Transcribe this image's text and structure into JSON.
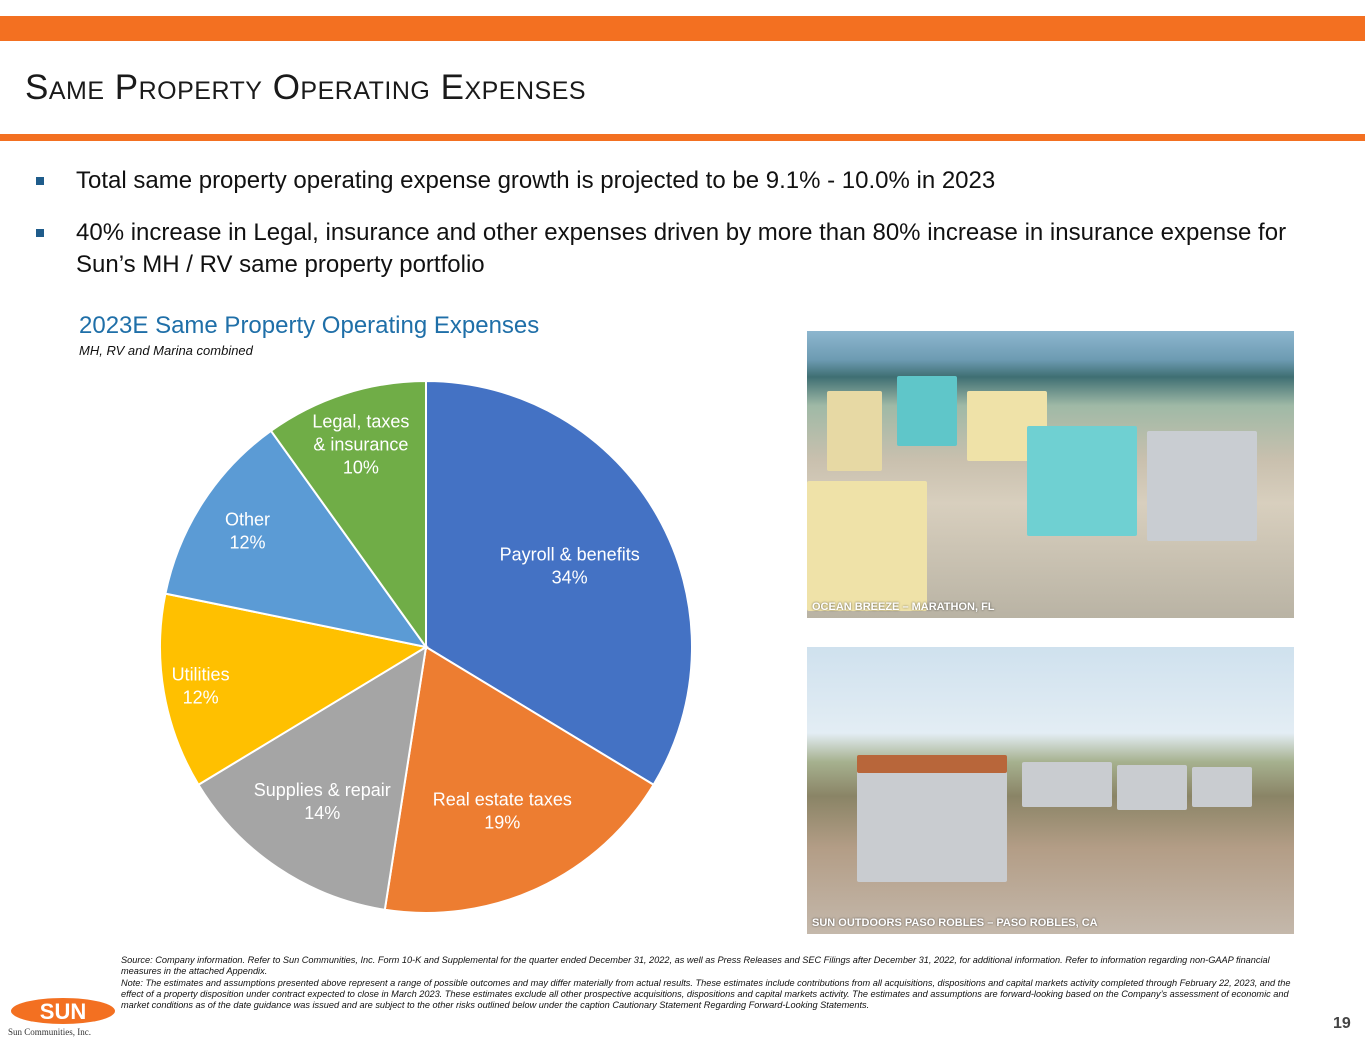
{
  "slide": {
    "title": "Same Property Operating Expenses",
    "page_number": "19",
    "accent_color": "#F37021"
  },
  "bullets": [
    "Total same property operating expense growth is projected to be 9.1% - 10.0% in 2023",
    "40% increase in Legal, insurance and other expenses driven by more than 80% increase in insurance expense for Sun’s MH / RV same property portfolio"
  ],
  "chart_data": {
    "type": "pie",
    "title": "2023E Same Property Operating Expenses",
    "subtitle": "MH, RV and Marina combined",
    "slices": [
      {
        "label": "Payroll & benefits",
        "value": 34,
        "value_label": "34%",
        "color": "#4472C4"
      },
      {
        "label": "Real estate taxes",
        "value": 19,
        "value_label": "19%",
        "color": "#ED7D31"
      },
      {
        "label": "Supplies & repair",
        "value": 14,
        "value_label": "14%",
        "color": "#A5A5A5"
      },
      {
        "label": "Utilities",
        "value": 12,
        "value_label": "12%",
        "color": "#FFC000"
      },
      {
        "label": "Other",
        "value": 12,
        "value_label": "12%",
        "color": "#5B9BD5"
      },
      {
        "label": "Legal, taxes & insurance",
        "label_lines": [
          "Legal, taxes",
          "& insurance"
        ],
        "value": 10,
        "value_label": "10%",
        "color": "#70AD47"
      }
    ]
  },
  "photos": [
    {
      "caption": "Ocean Breeze – Marathon, FL"
    },
    {
      "caption": "Sun Outdoors Paso Robles – Paso Robles, CA"
    }
  ],
  "footnotes": {
    "source": "Source: Company information. Refer to Sun Communities, Inc. Form 10-K and Supplemental for the quarter ended December 31, 2022, as well as Press Releases and SEC Filings after December 31, 2022, for additional information.  Refer to information regarding non-GAAP financial measures in the attached Appendix.",
    "note": "Note: The estimates and assumptions presented above represent a range of possible outcomes and may differ materially from actual results. These estimates include contributions from all acquisitions, dispositions and capital markets activity completed through February 22, 2023, and the effect of a property disposition under contract expected to close in March 2023. These estimates exclude all other prospective acquisitions, dispositions and capital markets activity. The estimates and assumptions are forward-looking based on the Company’s assessment of economic and market conditions as of the date guidance was issued and are subject to the other risks outlined below under the caption Cautionary Statement Regarding Forward-Looking Statements."
  },
  "logo": {
    "mark": "SUN",
    "company": "Sun Communities, Inc."
  }
}
